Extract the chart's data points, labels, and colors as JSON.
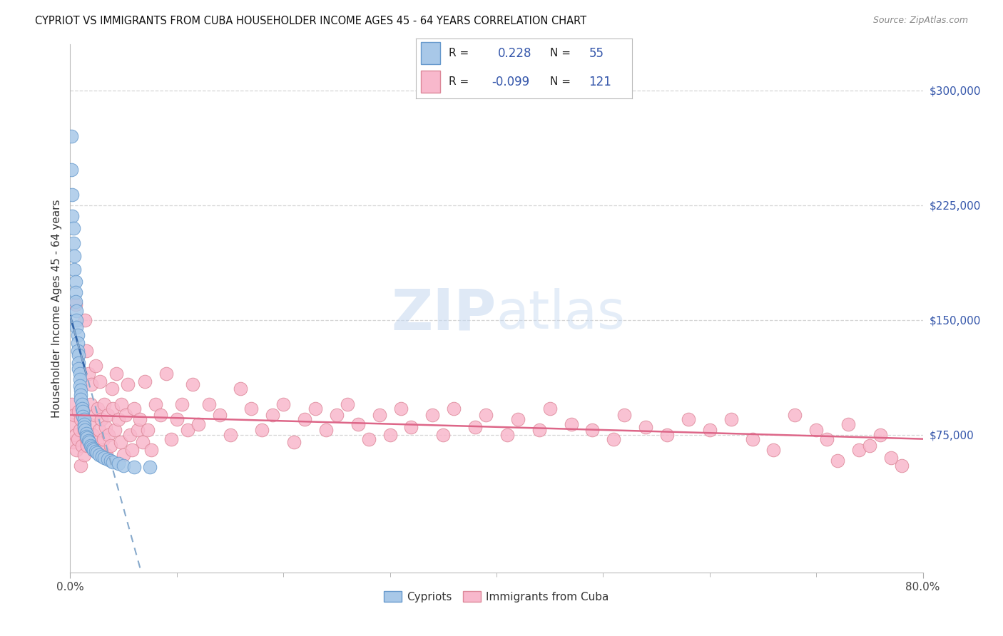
{
  "title": "CYPRIOT VS IMMIGRANTS FROM CUBA HOUSEHOLDER INCOME AGES 45 - 64 YEARS CORRELATION CHART",
  "source": "Source: ZipAtlas.com",
  "ylabel": "Householder Income Ages 45 - 64 years",
  "xlim": [
    0.0,
    0.8
  ],
  "ylim": [
    -15000,
    330000
  ],
  "xtick_major": [
    0.0,
    0.8
  ],
  "xtick_major_labels": [
    "0.0%",
    "80.0%"
  ],
  "xtick_minor": [
    0.1,
    0.2,
    0.3,
    0.4,
    0.5,
    0.6,
    0.7
  ],
  "yticks_right": [
    75000,
    150000,
    225000,
    300000
  ],
  "ytick_labels_right": [
    "$75,000",
    "$150,000",
    "$225,000",
    "$300,000"
  ],
  "color_cypriot_fill": "#a8c8e8",
  "color_cypriot_edge": "#6699cc",
  "color_cuba_fill": "#f8b8cc",
  "color_cuba_edge": "#dd8899",
  "color_trend_cypriot_solid": "#3366aa",
  "color_trend_cypriot_dash": "#88aacc",
  "color_trend_cuba": "#dd6688",
  "color_legend_blue": "#3355aa",
  "color_grid": "#cccccc",
  "bg_color": "#ffffff",
  "watermark_zip": "ZIP",
  "watermark_atlas": "atlas",
  "watermark_color": "#dde8f5",
  "cypriot_x": [
    0.001,
    0.001,
    0.002,
    0.002,
    0.003,
    0.003,
    0.004,
    0.004,
    0.005,
    0.005,
    0.005,
    0.006,
    0.006,
    0.006,
    0.007,
    0.007,
    0.007,
    0.008,
    0.008,
    0.008,
    0.009,
    0.009,
    0.009,
    0.01,
    0.01,
    0.01,
    0.011,
    0.011,
    0.012,
    0.012,
    0.013,
    0.013,
    0.013,
    0.014,
    0.015,
    0.015,
    0.016,
    0.017,
    0.018,
    0.019,
    0.02,
    0.021,
    0.022,
    0.024,
    0.025,
    0.027,
    0.03,
    0.032,
    0.035,
    0.038,
    0.04,
    0.045,
    0.05,
    0.06,
    0.075
  ],
  "cypriot_y": [
    270000,
    248000,
    232000,
    218000,
    210000,
    200000,
    192000,
    183000,
    175000,
    168000,
    162000,
    156000,
    150000,
    145000,
    140000,
    135000,
    130000,
    127000,
    122000,
    118000,
    115000,
    111000,
    107000,
    104000,
    101000,
    98000,
    95000,
    92000,
    90000,
    87000,
    85000,
    82000,
    80000,
    78000,
    76000,
    74000,
    73000,
    71000,
    70000,
    68000,
    67000,
    66000,
    65000,
    64000,
    63000,
    62000,
    61000,
    60000,
    59000,
    58000,
    57000,
    56000,
    55000,
    54000,
    54000
  ],
  "cuba_x": [
    0.001,
    0.002,
    0.003,
    0.004,
    0.005,
    0.005,
    0.006,
    0.007,
    0.008,
    0.009,
    0.01,
    0.01,
    0.011,
    0.012,
    0.013,
    0.013,
    0.014,
    0.015,
    0.015,
    0.016,
    0.017,
    0.018,
    0.019,
    0.02,
    0.021,
    0.022,
    0.023,
    0.024,
    0.025,
    0.026,
    0.027,
    0.028,
    0.029,
    0.03,
    0.031,
    0.032,
    0.033,
    0.034,
    0.035,
    0.036,
    0.038,
    0.039,
    0.04,
    0.042,
    0.043,
    0.045,
    0.047,
    0.048,
    0.05,
    0.052,
    0.054,
    0.056,
    0.058,
    0.06,
    0.063,
    0.065,
    0.068,
    0.07,
    0.073,
    0.076,
    0.08,
    0.085,
    0.09,
    0.095,
    0.1,
    0.105,
    0.11,
    0.115,
    0.12,
    0.13,
    0.14,
    0.15,
    0.16,
    0.17,
    0.18,
    0.19,
    0.2,
    0.21,
    0.22,
    0.23,
    0.24,
    0.25,
    0.26,
    0.27,
    0.28,
    0.29,
    0.3,
    0.31,
    0.32,
    0.34,
    0.35,
    0.36,
    0.38,
    0.39,
    0.41,
    0.42,
    0.44,
    0.45,
    0.47,
    0.49,
    0.51,
    0.52,
    0.54,
    0.56,
    0.58,
    0.6,
    0.62,
    0.64,
    0.66,
    0.68,
    0.7,
    0.71,
    0.72,
    0.73,
    0.74,
    0.75,
    0.76,
    0.77,
    0.78
  ],
  "cuba_y": [
    82000,
    95000,
    70000,
    88000,
    75000,
    160000,
    65000,
    72000,
    90000,
    78000,
    85000,
    55000,
    68000,
    92000,
    62000,
    78000,
    150000,
    72000,
    130000,
    68000,
    115000,
    82000,
    95000,
    108000,
    75000,
    65000,
    88000,
    120000,
    70000,
    92000,
    78000,
    110000,
    85000,
    65000,
    72000,
    95000,
    80000,
    62000,
    88000,
    75000,
    68000,
    105000,
    92000,
    78000,
    115000,
    85000,
    70000,
    95000,
    62000,
    88000,
    108000,
    75000,
    65000,
    92000,
    78000,
    85000,
    70000,
    110000,
    78000,
    65000,
    95000,
    88000,
    115000,
    72000,
    85000,
    95000,
    78000,
    108000,
    82000,
    95000,
    88000,
    75000,
    105000,
    92000,
    78000,
    88000,
    95000,
    70000,
    85000,
    92000,
    78000,
    88000,
    95000,
    82000,
    72000,
    88000,
    75000,
    92000,
    80000,
    88000,
    75000,
    92000,
    80000,
    88000,
    75000,
    85000,
    78000,
    92000,
    82000,
    78000,
    72000,
    88000,
    80000,
    75000,
    85000,
    78000,
    85000,
    72000,
    65000,
    88000,
    78000,
    72000,
    58000,
    82000,
    65000,
    68000,
    75000,
    60000,
    55000
  ]
}
